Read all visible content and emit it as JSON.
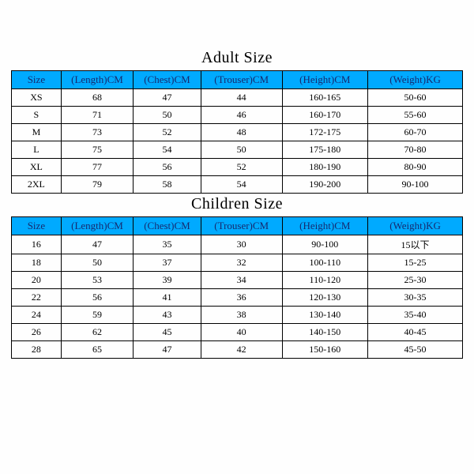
{
  "adult": {
    "title": "Adult Size",
    "columns": [
      "Size",
      "(Length)CM",
      "(Chest)CM",
      "(Trouser)CM",
      "(Height)CM",
      "(Weight)KG"
    ],
    "rows": [
      [
        "XS",
        "68",
        "47",
        "44",
        "160-165",
        "50-60"
      ],
      [
        "S",
        "71",
        "50",
        "46",
        "160-170",
        "55-60"
      ],
      [
        "M",
        "73",
        "52",
        "48",
        "172-175",
        "60-70"
      ],
      [
        "L",
        "75",
        "54",
        "50",
        "175-180",
        "70-80"
      ],
      [
        "XL",
        "77",
        "56",
        "52",
        "180-190",
        "80-90"
      ],
      [
        "2XL",
        "79",
        "58",
        "54",
        "190-200",
        "90-100"
      ]
    ]
  },
  "children": {
    "title": "Children Size",
    "columns": [
      "Size",
      "(Length)CM",
      "(Chest)CM",
      "(Trouser)CM",
      "(Height)CM",
      "(Weight)KG"
    ],
    "rows": [
      [
        "16",
        "47",
        "35",
        "30",
        "90-100",
        "15以下"
      ],
      [
        "18",
        "50",
        "37",
        "32",
        "100-110",
        "15-25"
      ],
      [
        "20",
        "53",
        "39",
        "34",
        "110-120",
        "25-30"
      ],
      [
        "22",
        "56",
        "41",
        "36",
        "120-130",
        "30-35"
      ],
      [
        "24",
        "59",
        "43",
        "38",
        "130-140",
        "35-40"
      ],
      [
        "26",
        "62",
        "45",
        "40",
        "140-150",
        "40-45"
      ],
      [
        "28",
        "65",
        "47",
        "42",
        "150-160",
        "45-50"
      ]
    ]
  },
  "style": {
    "header_bg": "#00aaff",
    "header_fg": "#162a6f",
    "border_color": "#000000",
    "fontsize_title": 20,
    "fontsize_cell": 12,
    "col_widths_pct": [
      11,
      16,
      15,
      18,
      19,
      21
    ]
  }
}
